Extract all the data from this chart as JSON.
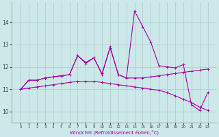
{
  "xlabel": "Windchill (Refroidissement éolien,°C)",
  "x": [
    0,
    1,
    2,
    3,
    4,
    5,
    6,
    7,
    8,
    9,
    10,
    11,
    12,
    13,
    14,
    15,
    16,
    17,
    18,
    19,
    20,
    21,
    22,
    23
  ],
  "series1": [
    11.0,
    11.4,
    11.4,
    11.5,
    11.55,
    11.6,
    11.65,
    12.5,
    12.2,
    12.4,
    11.7,
    12.85,
    11.65,
    11.5,
    11.5,
    11.5,
    11.55,
    11.6,
    11.65,
    11.7,
    11.75,
    11.8,
    11.85,
    11.9
  ],
  "series2": [
    11.0,
    11.4,
    11.4,
    11.5,
    11.55,
    11.6,
    11.65,
    12.5,
    12.15,
    12.4,
    11.65,
    12.9,
    11.65,
    11.5,
    14.5,
    13.8,
    13.1,
    12.05,
    12.0,
    11.95,
    12.1,
    10.3,
    10.05,
    10.85
  ],
  "series3": [
    11.0,
    11.05,
    11.1,
    11.15,
    11.2,
    11.25,
    11.3,
    11.35,
    11.35,
    11.35,
    11.3,
    11.25,
    11.2,
    11.15,
    11.1,
    11.05,
    11.0,
    10.95,
    10.85,
    10.7,
    10.55,
    10.4,
    10.2,
    10.05
  ],
  "line_color": "#aa00aa",
  "bg_color": "#cce8e8",
  "grid_color": "#aacccc",
  "ylim": [
    9.5,
    14.9
  ],
  "yticks": [
    10,
    11,
    12,
    13,
    14
  ],
  "xticks": [
    0,
    1,
    2,
    3,
    4,
    5,
    6,
    7,
    8,
    9,
    10,
    11,
    12,
    13,
    14,
    15,
    16,
    17,
    18,
    19,
    20,
    21,
    22,
    23
  ]
}
